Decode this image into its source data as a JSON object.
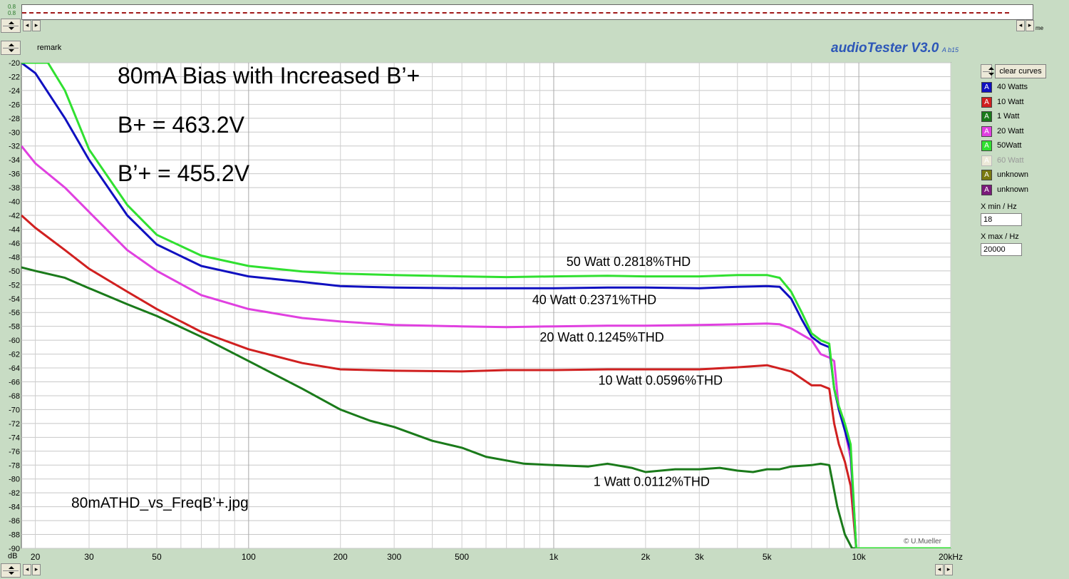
{
  "top_panel": {
    "ticks": [
      "0.8",
      "0.8"
    ],
    "stray_label": "me"
  },
  "remark_label": "remark",
  "app_title": "audioTester V3.0",
  "app_build": "A b15",
  "clear_curves_label": "clear curves",
  "legend": [
    {
      "label": "40 Watts",
      "color": "#1010c0",
      "dim": false
    },
    {
      "label": "10 Watt",
      "color": "#d02020",
      "dim": false
    },
    {
      "label": "1 Watt",
      "color": "#1a7a1a",
      "dim": false
    },
    {
      "label": "20 Watt",
      "color": "#e040e0",
      "dim": false
    },
    {
      "label": "50Watt",
      "color": "#30e030",
      "dim": false
    },
    {
      "label": "60 Watt",
      "color": "#ece9d8",
      "dim": true
    },
    {
      "label": "unknown",
      "color": "#7a7a10",
      "dim": false
    },
    {
      "label": "unknown",
      "color": "#7a1a7a",
      "dim": false
    }
  ],
  "legend_glyph": "A",
  "xmin": {
    "label": "X min / Hz",
    "value": "18"
  },
  "xmax": {
    "label": "X max / Hz",
    "value": "20000"
  },
  "copyright": "© U.Mueller",
  "chart_data": {
    "type": "line",
    "title": "80mA Bias with Increased B’+",
    "subtitle_lines": [
      "B+ = 463.2V",
      "B’+ = 455.2V"
    ],
    "file_label": "80mATHD_vs_FreqB’+.jpg",
    "ylabel": "dB",
    "xlabel": "",
    "x_scale": "log",
    "xlim": [
      18,
      20000
    ],
    "ylim": [
      -90,
      -20
    ],
    "grid": true,
    "y_ticks": [
      -20,
      -22,
      -24,
      -26,
      -28,
      -30,
      -32,
      -34,
      -36,
      -38,
      -40,
      -42,
      -44,
      -46,
      -48,
      -50,
      -52,
      -54,
      -56,
      -58,
      -60,
      -62,
      -64,
      -66,
      -68,
      -70,
      -72,
      -74,
      -76,
      -78,
      -80,
      -82,
      -84,
      -86,
      -88,
      -90
    ],
    "x_ticks": [
      {
        "v": 20,
        "t": "20"
      },
      {
        "v": 30,
        "t": "30"
      },
      {
        "v": 50,
        "t": "50"
      },
      {
        "v": 100,
        "t": "100"
      },
      {
        "v": 200,
        "t": "200"
      },
      {
        "v": 300,
        "t": "300"
      },
      {
        "v": 500,
        "t": "500"
      },
      {
        "v": 1000,
        "t": "1k"
      },
      {
        "v": 2000,
        "t": "2k"
      },
      {
        "v": 3000,
        "t": "3k"
      },
      {
        "v": 5000,
        "t": "5k"
      },
      {
        "v": 10000,
        "t": "10k"
      },
      {
        "v": 20000,
        "t": "20kHz"
      }
    ],
    "series": [
      {
        "color": "#1a7a1a",
        "x": [
          18,
          20,
          25,
          30,
          40,
          50,
          70,
          100,
          150,
          200,
          250,
          300,
          400,
          500,
          600,
          800,
          1000,
          1300,
          1500,
          1800,
          2000,
          2500,
          3000,
          3500,
          4000,
          4500,
          5000,
          5500,
          6000,
          7000,
          7500,
          8000,
          8500,
          9000,
          9500,
          9800
        ],
        "y": [
          -49.5,
          -50,
          -51,
          -52.5,
          -54.8,
          -56.5,
          -59.5,
          -63,
          -67,
          -70,
          -71.6,
          -72.5,
          -74.5,
          -75.5,
          -76.8,
          -77.8,
          -78,
          -78.2,
          -77.8,
          -78.4,
          -79,
          -78.6,
          -78.6,
          -78.4,
          -78.8,
          -79,
          -78.6,
          -78.6,
          -78.2,
          -78,
          -77.8,
          -78,
          -84,
          -88,
          -90,
          -90
        ]
      },
      {
        "color": "#d02020",
        "x": [
          18,
          20,
          25,
          30,
          40,
          50,
          70,
          100,
          150,
          200,
          300,
          500,
          700,
          1000,
          1500,
          2000,
          3000,
          4000,
          5000,
          6000,
          7000,
          7500,
          8000,
          8300,
          8600,
          9000,
          9400,
          9800
        ],
        "y": [
          -42,
          -43.8,
          -47,
          -49.7,
          -53,
          -55.5,
          -58.8,
          -61.3,
          -63.3,
          -64.2,
          -64.4,
          -64.5,
          -64.3,
          -64.3,
          -64.2,
          -64.2,
          -64.2,
          -63.9,
          -63.6,
          -64.5,
          -66.5,
          -66.5,
          -67,
          -72,
          -75,
          -77.5,
          -81,
          -90
        ]
      },
      {
        "color": "#e040e0",
        "x": [
          18,
          20,
          25,
          30,
          40,
          50,
          70,
          100,
          150,
          200,
          300,
          500,
          700,
          1000,
          1500,
          2000,
          3000,
          4000,
          5000,
          5500,
          6000,
          7000,
          7500,
          8000,
          8300,
          8600,
          9000,
          9400,
          9800
        ],
        "y": [
          -32,
          -34.5,
          -38,
          -41.5,
          -47,
          -50,
          -53.5,
          -55.5,
          -56.8,
          -57.3,
          -57.8,
          -58,
          -58.1,
          -58,
          -57.9,
          -57.9,
          -57.8,
          -57.7,
          -57.6,
          -57.7,
          -58.3,
          -60,
          -62,
          -62.5,
          -63,
          -70,
          -73,
          -77,
          -90
        ]
      },
      {
        "color": "#1010c0",
        "x": [
          18,
          20,
          25,
          30,
          40,
          50,
          70,
          100,
          150,
          200,
          300,
          500,
          700,
          1000,
          1500,
          2000,
          3000,
          4000,
          5000,
          5500,
          6000,
          6500,
          7000,
          7500,
          8000,
          8300,
          8600,
          9000,
          9400,
          9800
        ],
        "y": [
          -20,
          -21.5,
          -28,
          -34,
          -42,
          -46.2,
          -49.3,
          -50.8,
          -51.6,
          -52.2,
          -52.4,
          -52.5,
          -52.5,
          -52.5,
          -52.4,
          -52.4,
          -52.5,
          -52.3,
          -52.2,
          -52.3,
          -54,
          -57,
          -59.5,
          -60.5,
          -61,
          -67,
          -70,
          -73,
          -76,
          -90
        ]
      },
      {
        "color": "#30e030",
        "x": [
          18,
          20,
          22,
          25,
          30,
          40,
          50,
          70,
          100,
          150,
          200,
          300,
          500,
          700,
          1000,
          1500,
          2000,
          3000,
          4000,
          5000,
          5500,
          6000,
          6500,
          7000,
          7500,
          8000,
          8300,
          8600,
          9000,
          9400,
          9800,
          10000,
          15000,
          20000
        ],
        "y": [
          -20,
          -20,
          -20,
          -24,
          -32.5,
          -40.5,
          -44.8,
          -47.8,
          -49.3,
          -50.1,
          -50.4,
          -50.6,
          -50.8,
          -50.9,
          -50.8,
          -50.7,
          -50.8,
          -50.8,
          -50.6,
          -50.6,
          -51,
          -53,
          -56,
          -59,
          -60,
          -60.5,
          -67,
          -69.5,
          -72,
          -75,
          -90,
          -90,
          -90,
          -90
        ]
      }
    ],
    "annotations": [
      {
        "text": "50 Watt  0.2818%THD",
        "x": 1100,
        "y": -49.3
      },
      {
        "text": "40 Watt  0.2371%THD",
        "x": 850,
        "y": -54.8
      },
      {
        "text": "20 Watt  0.1245%THD",
        "x": 900,
        "y": -60.2
      },
      {
        "text": "10 Watt  0.0596%THD",
        "x": 1400,
        "y": -66.4
      },
      {
        "text": "1 Watt  0.0112%THD",
        "x": 1350,
        "y": -81
      }
    ]
  }
}
